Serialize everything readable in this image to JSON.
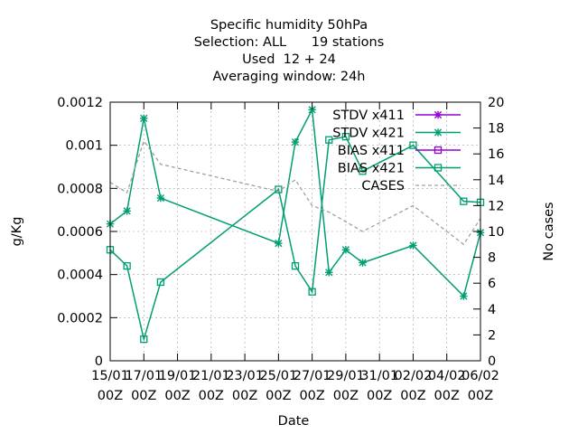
{
  "chart_data": {
    "type": "line",
    "title_lines": [
      "Specific humidity 50hPa",
      "Selection: ALL      19 stations",
      "Used  12 + 24",
      "Averaging window: 24h"
    ],
    "xlabel": "Date",
    "ylabel": "g/Kg",
    "y2label": "No cases",
    "x_ticks": [
      {
        "day": 0,
        "l1": "15/01",
        "l2": "00Z"
      },
      {
        "day": 2,
        "l1": "17/01",
        "l2": "00Z"
      },
      {
        "day": 4,
        "l1": "19/01",
        "l2": "00Z"
      },
      {
        "day": 6,
        "l1": "21/01",
        "l2": "00Z"
      },
      {
        "day": 8,
        "l1": "23/01",
        "l2": "00Z"
      },
      {
        "day": 10,
        "l1": "25/01",
        "l2": "00Z"
      },
      {
        "day": 12,
        "l1": "27/01",
        "l2": "00Z"
      },
      {
        "day": 14,
        "l1": "29/01",
        "l2": "00Z"
      },
      {
        "day": 16,
        "l1": "31/01",
        "l2": "00Z"
      },
      {
        "day": 18,
        "l1": "02/02",
        "l2": "00Z"
      },
      {
        "day": 20,
        "l1": "04/02",
        "l2": "00Z"
      },
      {
        "day": 22,
        "l1": "06/02",
        "l2": "00Z"
      }
    ],
    "xlim": [
      0,
      22
    ],
    "ylim": [
      0,
      0.0012
    ],
    "y_ticks": [
      {
        "v": 0,
        "label": "0"
      },
      {
        "v": 0.0002,
        "label": "0.0002"
      },
      {
        "v": 0.0004,
        "label": "0.0004"
      },
      {
        "v": 0.0006,
        "label": "0.0006"
      },
      {
        "v": 0.0008,
        "label": "0.0008"
      },
      {
        "v": 0.001,
        "label": "0.001"
      },
      {
        "v": 0.0012,
        "label": "0.0012"
      }
    ],
    "y2lim": [
      0,
      20
    ],
    "y2_ticks": [
      {
        "v": 0,
        "label": "0"
      },
      {
        "v": 2,
        "label": "2"
      },
      {
        "v": 4,
        "label": "4"
      },
      {
        "v": 6,
        "label": "6"
      },
      {
        "v": 8,
        "label": "8"
      },
      {
        "v": 10,
        "label": "10"
      },
      {
        "v": 12,
        "label": "12"
      },
      {
        "v": 14,
        "label": "14"
      },
      {
        "v": 16,
        "label": "16"
      },
      {
        "v": 18,
        "label": "18"
      },
      {
        "v": 20,
        "label": "20"
      }
    ],
    "legend_position": "top-right",
    "grid": true,
    "series": [
      {
        "name": "STDV x411",
        "color": "#9400d3",
        "marker": "star",
        "dash": false,
        "axis": "y1",
        "points": []
      },
      {
        "name": "STDV x421",
        "color": "#009e73",
        "marker": "star",
        "dash": false,
        "axis": "y1",
        "points": [
          [
            0,
            0.000635
          ],
          [
            1,
            0.000695
          ],
          [
            2,
            0.001125
          ],
          [
            3,
            0.000755
          ],
          [
            10,
            0.000545
          ],
          [
            11,
            0.001015
          ],
          [
            12,
            0.001165
          ],
          [
            13,
            0.00041
          ],
          [
            14,
            0.000515
          ],
          [
            15,
            0.000455
          ],
          [
            18,
            0.000535
          ],
          [
            21,
            0.0003
          ],
          [
            22,
            0.000595
          ]
        ]
      },
      {
        "name": "BIAS x411",
        "color": "#9400d3",
        "marker": "square",
        "dash": false,
        "axis": "y1",
        "points": []
      },
      {
        "name": "BIAS x421",
        "color": "#009e73",
        "marker": "square",
        "dash": false,
        "axis": "y1",
        "points": [
          [
            0,
            0.000515
          ],
          [
            1,
            0.00044
          ],
          [
            2,
            0.0001
          ],
          [
            3,
            0.000365
          ],
          [
            10,
            0.000795
          ],
          [
            11,
            0.00044
          ],
          [
            12,
            0.00032
          ],
          [
            13,
            0.001025
          ],
          [
            14,
            0.00104
          ],
          [
            15,
            0.00088
          ],
          [
            18,
            0.001
          ],
          [
            21,
            0.00074
          ],
          [
            22,
            0.000735
          ]
        ]
      },
      {
        "name": "CASES",
        "color": "#a0a0a0",
        "marker": "none",
        "dash": true,
        "axis": "y2",
        "points": [
          [
            0,
            13.8
          ],
          [
            1,
            13.0
          ],
          [
            2,
            17.0
          ],
          [
            3,
            15.2
          ],
          [
            10,
            13.1
          ],
          [
            11,
            14.0
          ],
          [
            12,
            12.0
          ],
          [
            13,
            11.5
          ],
          [
            15,
            10.0
          ],
          [
            18,
            12.0
          ],
          [
            21,
            9.0
          ],
          [
            22,
            11.0
          ]
        ]
      }
    ]
  }
}
